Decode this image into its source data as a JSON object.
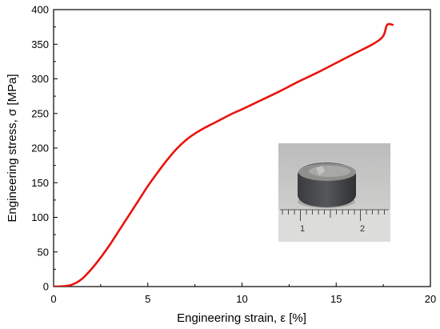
{
  "chart_data": {
    "type": "line",
    "xlabel": "Engineering strain, ε [%]",
    "ylabel": "Engineering stress, σ [MPa]",
    "xlim": [
      0,
      20
    ],
    "ylim": [
      0,
      400
    ],
    "xticks": [
      0,
      5,
      10,
      15,
      20
    ],
    "yticks": [
      0,
      50,
      100,
      150,
      200,
      250,
      300,
      350,
      400
    ],
    "grid": false,
    "legend": "none",
    "series": [
      {
        "color": "#e8140c",
        "x": [
          0,
          0.5,
          1.0,
          1.5,
          2.0,
          2.5,
          3.0,
          3.5,
          4.0,
          4.5,
          5.0,
          5.5,
          6.0,
          6.5,
          7.0,
          7.5,
          8.0,
          8.5,
          9.0,
          9.5,
          10,
          11,
          12,
          13,
          14,
          15,
          16,
          17,
          17.5,
          17.7,
          18.0
        ],
        "y": [
          0,
          0.5,
          3,
          11,
          25,
          42,
          61,
          82,
          103,
          124,
          145,
          164,
          182,
          198,
          211,
          221,
          229,
          236,
          243,
          250,
          256,
          269,
          282,
          296,
          309,
          323,
          337,
          351,
          362,
          378,
          378
        ]
      }
    ],
    "inset": {
      "type": "photo",
      "subject": "specimen-with-ruler",
      "ruler_labels": [
        "1",
        "2"
      ]
    }
  }
}
